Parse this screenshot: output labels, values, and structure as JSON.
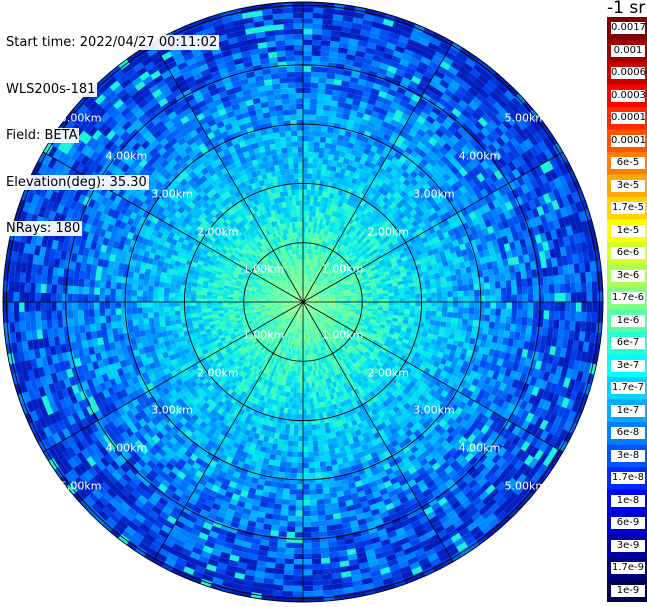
{
  "info": {
    "start_time": "Start time: 2022/04/27 00:11:02",
    "instrument": "WLS200s-181",
    "field": "Field: BETA",
    "elevation": "Elevation(deg): 35.30",
    "nrays": "NRays: 180"
  },
  "ring_labels": [
    "1.00km",
    "2.00km",
    "3.00km",
    "4.00km",
    "5.00km"
  ],
  "colorbar": {
    "unit": "-1 sr",
    "labels": [
      "0.0017",
      "0.001",
      "0.0006",
      "0.0003",
      "0.00017",
      "0.0001",
      "6e-5",
      "3e-5",
      "1.7e-5",
      "1e-5",
      "6e-6",
      "3e-6",
      "1.7e-6",
      "1e-6",
      "6e-7",
      "3e-7",
      "1.7e-7",
      "1e-7",
      "6e-8",
      "3e-8",
      "1.7e-8",
      "1e-8",
      "6e-9",
      "3e-9",
      "1.7e-9",
      "1e-9"
    ],
    "colors": [
      "#7f0000",
      "#a00000",
      "#c80000",
      "#ff0000",
      "#ff2a00",
      "#ff5500",
      "#ff8000",
      "#ffaa00",
      "#ffd400",
      "#ffff00",
      "#d4ff2a",
      "#aaff55",
      "#80ff80",
      "#55ffaa",
      "#2affd4",
      "#00ffff",
      "#00d4ff",
      "#00aaff",
      "#0080ff",
      "#0055ff",
      "#002aff",
      "#0000ff",
      "#0000d4",
      "#0000aa",
      "#000080",
      "#00004c"
    ]
  }
}
